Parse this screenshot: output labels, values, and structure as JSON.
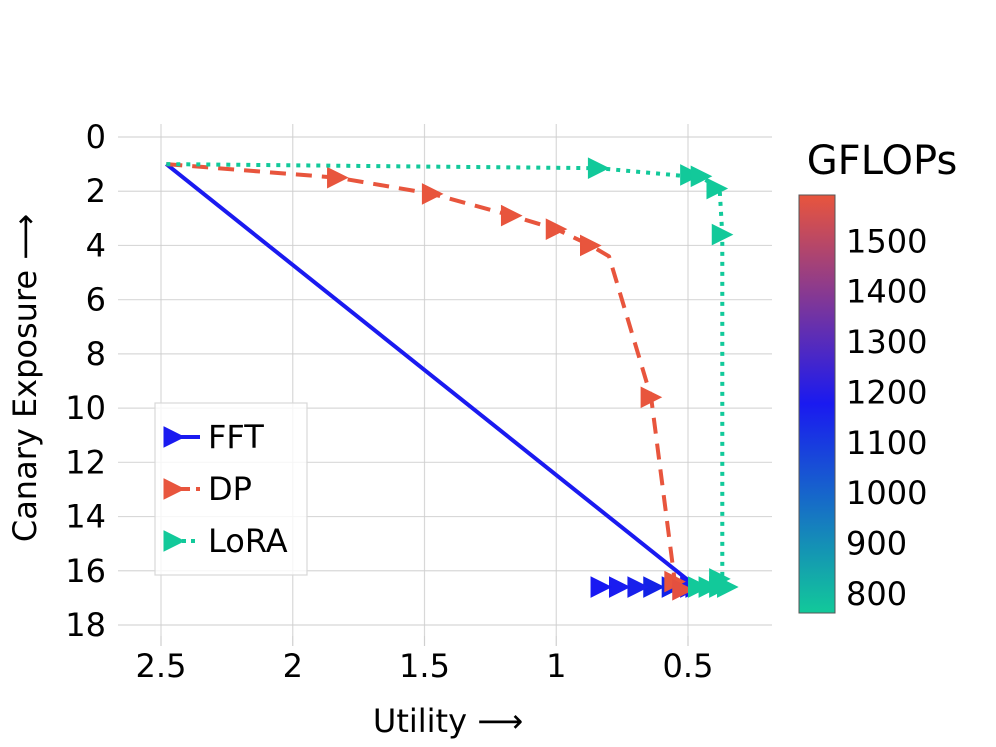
{
  "chart_data": {
    "type": "line",
    "xlabel": "Utility ⟶",
    "ylabel": "Canary Exposure ⟶",
    "xlim": [
      2.5,
      0.3
    ],
    "ylim": [
      18,
      0
    ],
    "x_inverted": true,
    "y_inverted": true,
    "x_ticks": [
      2.5,
      2,
      1.5,
      1,
      0.5
    ],
    "x_tick_labels": [
      "2.5",
      "2",
      "1.5",
      "1",
      "0.5"
    ],
    "y_ticks": [
      0,
      2,
      4,
      6,
      8,
      10,
      12,
      14,
      16,
      18
    ],
    "y_tick_labels": [
      "0",
      "2",
      "4",
      "6",
      "8",
      "10",
      "12",
      "14",
      "16",
      "18"
    ],
    "grid": true,
    "legend_position": "lower-left",
    "series": [
      {
        "name": "FFT",
        "color": "#1a1af0",
        "linestyle": "solid",
        "marker": "triangle-right",
        "line": [
          [
            2.48,
            1.0
          ],
          [
            0.48,
            16.5
          ]
        ],
        "points": [
          [
            0.47,
            16.6
          ],
          [
            0.49,
            16.6
          ],
          [
            0.56,
            16.6
          ],
          [
            0.63,
            16.6
          ],
          [
            0.69,
            16.6
          ],
          [
            0.76,
            16.6
          ],
          [
            0.83,
            16.6
          ]
        ],
        "point_colors": [
          "#1515ee",
          "#1a1af0",
          "#1022e8",
          "#1322e6",
          "#1820ec",
          "#1a1cf0",
          "#1818f2"
        ]
      },
      {
        "name": "DP",
        "color": "#e8553d",
        "linestyle": "dashed",
        "marker": "triangle-right",
        "line": [
          [
            2.48,
            1.0
          ],
          [
            1.83,
            1.5
          ],
          [
            1.47,
            2.1
          ],
          [
            1.17,
            2.9
          ],
          [
            1.0,
            3.4
          ],
          [
            0.87,
            4.0
          ],
          [
            0.8,
            4.4
          ],
          [
            0.64,
            9.6
          ],
          [
            0.55,
            16.4
          ],
          [
            0.52,
            16.7
          ]
        ],
        "points": [
          [
            1.83,
            1.5
          ],
          [
            1.47,
            2.1
          ],
          [
            1.17,
            2.9
          ],
          [
            1.0,
            3.4
          ],
          [
            0.87,
            4.0
          ],
          [
            0.64,
            9.6
          ],
          [
            0.55,
            16.4
          ],
          [
            0.52,
            16.7
          ]
        ],
        "point_colors": [
          "#e8553d",
          "#e8553d",
          "#e8553d",
          "#e8553d",
          "#e8553d",
          "#e8553d",
          "#e8553d",
          "#e4503f"
        ]
      },
      {
        "name": "LoRA",
        "color": "#12c99a",
        "linestyle": "dotted",
        "marker": "triangle-right",
        "line": [
          [
            2.48,
            1.0
          ],
          [
            0.84,
            1.15
          ],
          [
            0.5,
            1.45
          ],
          [
            0.44,
            1.55
          ],
          [
            0.38,
            1.9
          ],
          [
            0.37,
            3.6
          ],
          [
            0.37,
            16.3
          ],
          [
            0.38,
            16.6
          ]
        ],
        "points": [
          [
            0.84,
            1.15
          ],
          [
            0.49,
            1.4
          ],
          [
            0.45,
            1.45
          ],
          [
            0.39,
            1.9
          ],
          [
            0.37,
            3.6
          ],
          [
            0.38,
            16.3
          ],
          [
            0.46,
            16.6
          ],
          [
            0.42,
            16.6
          ],
          [
            0.38,
            16.6
          ],
          [
            0.35,
            16.6
          ]
        ],
        "point_colors": [
          "#12c99a",
          "#12c99a",
          "#12c99a",
          "#12c99a",
          "#12c99a",
          "#12c99a",
          "#12c99a",
          "#12c99a",
          "#12c99a",
          "#12c99a"
        ]
      }
    ],
    "colorbar": {
      "title": "GFLOPs",
      "ticks": [
        800,
        900,
        1000,
        1100,
        1200,
        1300,
        1400,
        1500
      ],
      "tick_labels": [
        "800",
        "900",
        "1000",
        "1100",
        "1200",
        "1300",
        "1400",
        "1500"
      ],
      "range": [
        760,
        1590
      ],
      "colors": [
        "#12c99a",
        "#1a1af0",
        "#e8553d"
      ]
    }
  }
}
